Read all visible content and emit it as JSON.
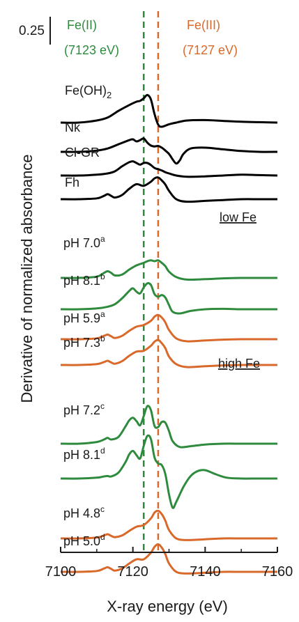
{
  "chart_data": {
    "type": "line",
    "title": "",
    "xlabel": "X-ray energy (eV)",
    "ylabel": "Derivative of normalized absorbance",
    "xlim": [
      7100,
      7160
    ],
    "x_ticks": [
      "7100",
      "7120",
      "7140",
      "7160"
    ],
    "scale_bar_label": "0.25",
    "grid": false,
    "reference_lines": [
      {
        "name": "Fe(II)",
        "energy_label": "(7123 eV)",
        "x": 7123,
        "color": "#2e8b3e"
      },
      {
        "name": "Fe(III)",
        "energy_label": "(7127 eV)",
        "x": 7127,
        "color": "#d8692a"
      }
    ],
    "group_labels": [
      "low Fe",
      "high Fe"
    ],
    "series": [
      {
        "name": "Fe(OH)2",
        "label_main": "Fe(OH)",
        "label_sub": "2",
        "label_sup": "",
        "color": "#000000",
        "x": [
          7100,
          7105,
          7110,
          7113,
          7116,
          7119,
          7121,
          7122,
          7123,
          7124,
          7125,
          7126,
          7127,
          7128,
          7130,
          7132,
          7135,
          7140,
          7145,
          7150,
          7155,
          7160
        ],
        "y": [
          0.0,
          0.0,
          0.05,
          0.12,
          0.28,
          0.42,
          0.5,
          0.52,
          0.58,
          0.66,
          0.55,
          0.2,
          -0.05,
          -0.1,
          -0.04,
          0.0,
          0.05,
          0.06,
          0.04,
          0.02,
          0.01,
          0.0
        ]
      },
      {
        "name": "Nk",
        "label_main": "Nk",
        "label_sub": "",
        "label_sup": "",
        "color": "#000000",
        "x": [
          7100,
          7105,
          7110,
          7113,
          7116,
          7119,
          7120,
          7121,
          7122,
          7123,
          7124,
          7125,
          7126,
          7127,
          7128,
          7129,
          7130,
          7131,
          7132,
          7133,
          7134,
          7136,
          7140,
          7145,
          7150,
          7155,
          7160
        ],
        "y": [
          0.0,
          0.0,
          0.03,
          0.08,
          0.18,
          0.28,
          0.3,
          0.25,
          0.28,
          0.32,
          0.22,
          0.15,
          0.13,
          0.14,
          0.1,
          0.03,
          -0.05,
          -0.18,
          -0.28,
          -0.2,
          -0.05,
          0.08,
          0.1,
          0.06,
          0.02,
          0.0,
          0.0
        ]
      },
      {
        "name": "Cl-GR",
        "label_main": "Cl-GR",
        "label_sub": "",
        "label_sup": "",
        "color": "#000000",
        "x": [
          7100,
          7105,
          7110,
          7113,
          7115,
          7117,
          7119,
          7120,
          7121,
          7122,
          7123,
          7124,
          7125,
          7126,
          7127,
          7128,
          7129,
          7130,
          7132,
          7135,
          7140,
          7145,
          7150,
          7155,
          7160
        ],
        "y": [
          0.0,
          0.0,
          0.02,
          0.05,
          0.1,
          0.22,
          0.32,
          0.34,
          0.3,
          0.26,
          0.3,
          0.3,
          0.25,
          0.18,
          0.15,
          0.12,
          0.08,
          0.05,
          0.0,
          -0.03,
          -0.02,
          0.0,
          0.02,
          0.01,
          0.0
        ]
      },
      {
        "name": "Fh",
        "label_main": "Fh",
        "label_sub": "",
        "label_sup": "",
        "color": "#000000",
        "x": [
          7100,
          7105,
          7110,
          7112,
          7113,
          7114,
          7115,
          7117,
          7119,
          7121,
          7123,
          7125,
          7126,
          7127,
          7128,
          7129,
          7130,
          7132,
          7135,
          7140,
          7145,
          7150,
          7155,
          7160
        ],
        "y": [
          0.0,
          0.0,
          0.02,
          0.08,
          0.12,
          0.08,
          0.04,
          0.1,
          0.25,
          0.36,
          0.32,
          0.42,
          0.5,
          0.52,
          0.45,
          0.35,
          0.2,
          0.0,
          -0.06,
          -0.04,
          -0.02,
          0.0,
          0.0,
          0.0
        ]
      },
      {
        "name": "pH 7.0a",
        "label_main": "pH 7.0",
        "label_sub": "",
        "label_sup": "a",
        "color": "#2e8b3e",
        "x": [
          7100,
          7105,
          7110,
          7112,
          7113,
          7114,
          7115,
          7117,
          7119,
          7121,
          7123,
          7124,
          7125,
          7126,
          7127,
          7128,
          7129,
          7130,
          7132,
          7135,
          7140,
          7145,
          7150,
          7155,
          7160
        ],
        "y": [
          0.0,
          0.0,
          0.03,
          0.12,
          0.16,
          0.12,
          0.06,
          0.08,
          0.2,
          0.3,
          0.36,
          0.4,
          0.42,
          0.4,
          0.42,
          0.36,
          0.28,
          0.15,
          0.02,
          -0.04,
          -0.03,
          -0.01,
          0.0,
          0.0,
          0.0
        ]
      },
      {
        "name": "pH 8.1b",
        "label_main": "pH 8.1",
        "label_sub": "",
        "label_sup": "b",
        "color": "#2e8b3e",
        "x": [
          7100,
          7105,
          7110,
          7113,
          7115,
          7117,
          7119,
          7120,
          7121,
          7122,
          7123,
          7124,
          7125,
          7126,
          7127,
          7128,
          7129,
          7130,
          7131,
          7133,
          7136,
          7140,
          7145,
          7150,
          7155,
          7160
        ],
        "y": [
          0.0,
          0.0,
          0.02,
          0.06,
          0.12,
          0.26,
          0.44,
          0.5,
          0.42,
          0.38,
          0.52,
          0.62,
          0.58,
          0.36,
          0.3,
          0.34,
          0.28,
          0.1,
          -0.06,
          -0.1,
          -0.04,
          0.0,
          0.01,
          0.0,
          0.0,
          0.0
        ]
      },
      {
        "name": "pH 5.9a",
        "label_main": "pH 5.9",
        "label_sub": "",
        "label_sup": "a",
        "color": "#d8692a",
        "x": [
          7100,
          7105,
          7110,
          7112,
          7113,
          7114,
          7115,
          7117,
          7119,
          7121,
          7123,
          7125,
          7126,
          7127,
          7128,
          7129,
          7130,
          7132,
          7135,
          7140,
          7145,
          7150,
          7155,
          7160
        ],
        "y": [
          0.0,
          0.0,
          0.02,
          0.08,
          0.11,
          0.07,
          0.03,
          0.08,
          0.2,
          0.3,
          0.34,
          0.44,
          0.54,
          0.58,
          0.52,
          0.4,
          0.22,
          0.02,
          -0.05,
          -0.03,
          -0.01,
          0.0,
          0.0,
          0.0
        ]
      },
      {
        "name": "pH 7.3b",
        "label_main": "pH 7.3",
        "label_sub": "",
        "label_sup": "b",
        "color": "#d8692a",
        "x": [
          7100,
          7105,
          7110,
          7112,
          7113,
          7114,
          7115,
          7117,
          7119,
          7121,
          7123,
          7125,
          7126,
          7127,
          7128,
          7129,
          7130,
          7132,
          7135,
          7140,
          7145,
          7150,
          7155,
          7160
        ],
        "y": [
          0.0,
          0.0,
          0.02,
          0.07,
          0.1,
          0.06,
          0.03,
          0.09,
          0.22,
          0.32,
          0.34,
          0.46,
          0.56,
          0.6,
          0.52,
          0.4,
          0.2,
          0.02,
          -0.05,
          -0.03,
          -0.01,
          0.0,
          0.0,
          0.0
        ]
      },
      {
        "name": "pH 7.2c",
        "label_main": "pH 7.2",
        "label_sub": "",
        "label_sup": "c",
        "color": "#2e8b3e",
        "x": [
          7100,
          7105,
          7110,
          7112,
          7113,
          7114,
          7116,
          7118,
          7119,
          7120,
          7121,
          7122,
          7123,
          7124,
          7125,
          7126,
          7127,
          7128,
          7129,
          7130,
          7131,
          7133,
          7136,
          7140,
          7145,
          7150,
          7155,
          7160
        ],
        "y": [
          0.0,
          0.0,
          0.04,
          0.1,
          0.14,
          0.1,
          0.16,
          0.42,
          0.56,
          0.62,
          0.54,
          0.44,
          0.66,
          0.9,
          0.8,
          0.42,
          0.4,
          0.52,
          0.5,
          0.3,
          0.06,
          -0.08,
          -0.06,
          -0.02,
          0.0,
          0.0,
          0.0,
          0.0
        ]
      },
      {
        "name": "pH 8.1d",
        "label_main": "pH 8.1",
        "label_sub": "",
        "label_sup": "d",
        "color": "#2e8b3e",
        "x": [
          7100,
          7105,
          7110,
          7112,
          7113,
          7114,
          7116,
          7118,
          7119,
          7120,
          7121,
          7122,
          7123,
          7124,
          7125,
          7126,
          7127,
          7128,
          7129,
          7130,
          7131,
          7132,
          7134,
          7136,
          7138,
          7140,
          7143,
          7146,
          7150,
          7155,
          7160
        ],
        "y": [
          0.0,
          0.0,
          0.02,
          0.05,
          0.06,
          0.05,
          0.14,
          0.4,
          0.58,
          0.66,
          0.56,
          0.48,
          0.78,
          1.02,
          0.94,
          0.5,
          0.36,
          0.32,
          0.1,
          -0.38,
          -0.7,
          -0.56,
          -0.2,
          0.06,
          0.18,
          0.2,
          0.1,
          0.02,
          0.0,
          0.0,
          0.0
        ]
      },
      {
        "name": "pH 4.8c",
        "label_main": "pH 4.8",
        "label_sub": "",
        "label_sup": "c",
        "color": "#d8692a",
        "x": [
          7100,
          7105,
          7110,
          7112,
          7113,
          7114,
          7115,
          7117,
          7119,
          7121,
          7123,
          7125,
          7126,
          7127,
          7128,
          7129,
          7130,
          7132,
          7135,
          7140,
          7145,
          7150,
          7155,
          7160
        ],
        "y": [
          0.0,
          0.0,
          0.02,
          0.07,
          0.1,
          0.06,
          0.03,
          0.07,
          0.18,
          0.28,
          0.32,
          0.48,
          0.62,
          0.66,
          0.58,
          0.42,
          0.2,
          0.0,
          -0.04,
          -0.02,
          0.0,
          0.0,
          0.0,
          0.0
        ]
      },
      {
        "name": "pH 5.0d",
        "label_main": "pH 5.0",
        "label_sub": "",
        "label_sup": "d",
        "color": "#d8692a",
        "x": [
          7100,
          7105,
          7110,
          7112,
          7113,
          7114,
          7115,
          7117,
          7119,
          7121,
          7123,
          7125,
          7126,
          7127,
          7128,
          7129,
          7130,
          7132,
          7135,
          7140,
          7145,
          7150,
          7155,
          7160
        ],
        "y": [
          0.0,
          0.0,
          0.02,
          0.08,
          0.11,
          0.07,
          0.03,
          0.08,
          0.2,
          0.3,
          0.3,
          0.46,
          0.6,
          0.66,
          0.58,
          0.42,
          0.2,
          0.0,
          -0.04,
          -0.02,
          0.0,
          0.0,
          0.0,
          0.0
        ]
      }
    ]
  }
}
